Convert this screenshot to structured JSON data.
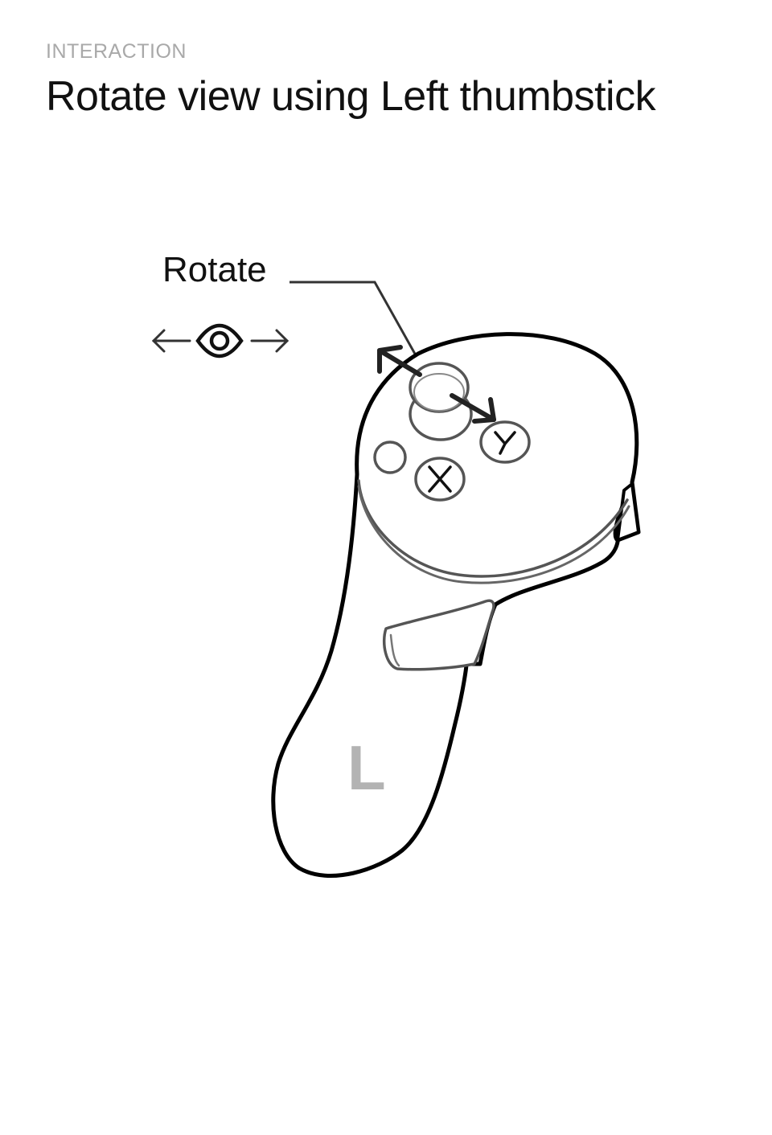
{
  "header": {
    "eyebrow": "INTERACTION",
    "title": "Rotate view using Left thumbstick"
  },
  "callout": {
    "label": "Rotate",
    "icons": [
      "arrow-left-icon",
      "eye-icon",
      "arrow-right-icon"
    ]
  },
  "controller": {
    "hand_label": "L",
    "buttons": {
      "x": "X",
      "y": "Y"
    }
  },
  "colors": {
    "text": "#111111",
    "eyebrow": "#a9a9a9",
    "outline": "#000000",
    "secondary_outline": "#666666",
    "hand_label": "#b3b3b3"
  }
}
